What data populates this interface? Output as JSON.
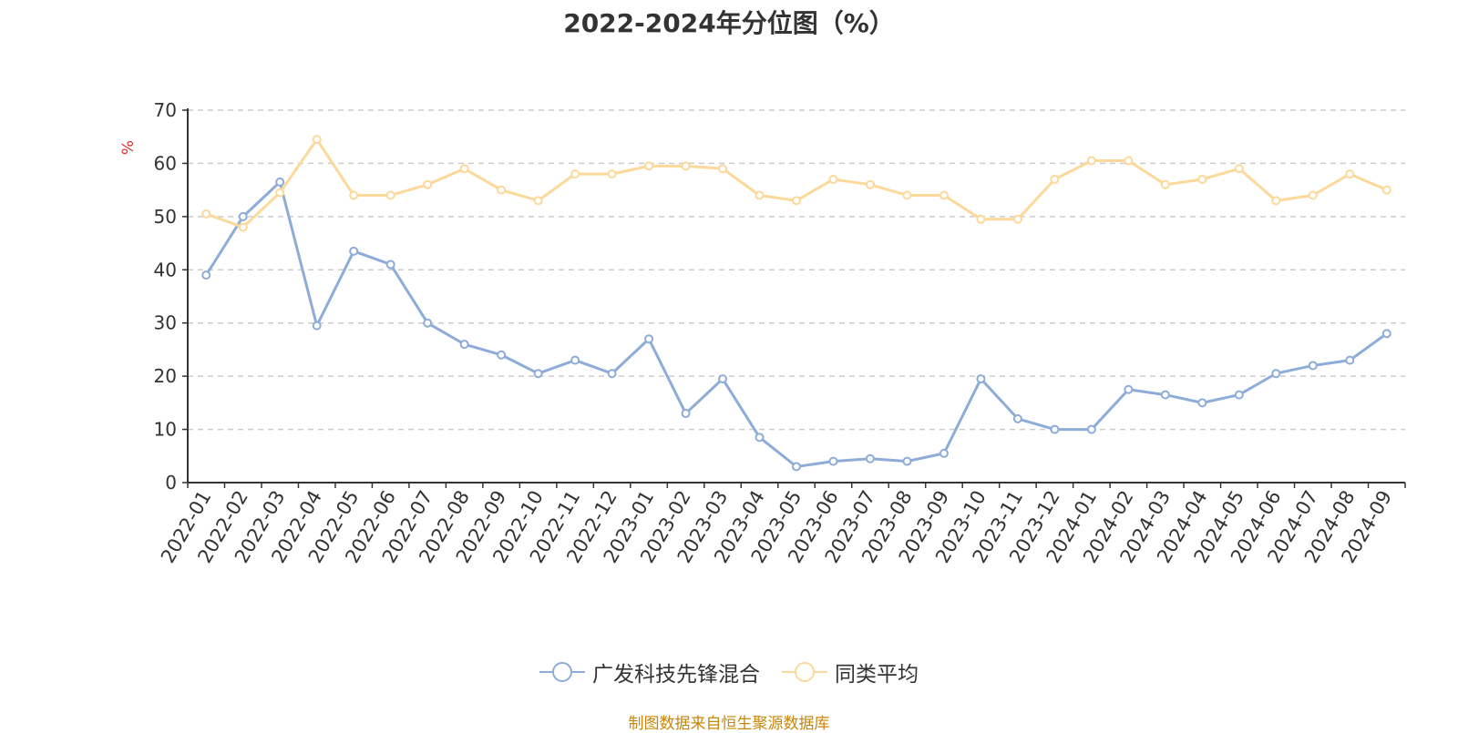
{
  "chart_data": {
    "type": "line",
    "title": "2022-2024年分位图（%）",
    "ylabel": "%",
    "xlabel": "",
    "ylim": [
      0,
      70
    ],
    "yticks": [
      0,
      10,
      20,
      30,
      40,
      50,
      60,
      70
    ],
    "grid": true,
    "legend_position": "bottom",
    "categories": [
      "2022-01",
      "2022-02",
      "2022-03",
      "2022-04",
      "2022-05",
      "2022-06",
      "2022-07",
      "2022-08",
      "2022-09",
      "2022-10",
      "2022-11",
      "2022-12",
      "2023-01",
      "2023-02",
      "2023-03",
      "2023-04",
      "2023-05",
      "2023-06",
      "2023-07",
      "2023-08",
      "2023-09",
      "2023-10",
      "2023-11",
      "2023-12",
      "2024-01",
      "2024-02",
      "2024-03",
      "2024-04",
      "2024-05",
      "2024-06",
      "2024-07",
      "2024-08",
      "2024-09"
    ],
    "series": [
      {
        "name": "广发科技先锋混合",
        "color": "#8eacd8",
        "values": [
          39,
          50,
          56.5,
          29.5,
          43.5,
          41,
          30,
          26,
          24,
          20.5,
          23,
          20.5,
          27,
          13,
          19.5,
          8.5,
          3,
          4,
          4.5,
          4,
          5.5,
          19.5,
          12,
          10,
          10,
          17.5,
          16.5,
          15,
          16.5,
          20.5,
          22,
          23,
          28
        ]
      },
      {
        "name": "同类平均",
        "color": "#fcd99a",
        "values": [
          50.5,
          48,
          54.5,
          64.5,
          54,
          54,
          56,
          59,
          55,
          53,
          58,
          58,
          59.5,
          59.5,
          59,
          54,
          53,
          57,
          56,
          54,
          54,
          49.5,
          49.5,
          57,
          60.5,
          60.5,
          56,
          57,
          59,
          53,
          54,
          58,
          55
        ]
      }
    ]
  },
  "source": {
    "text": "制图数据来自恒生聚源数据库",
    "color": "#c8860a"
  },
  "colors": {
    "axis": "#333333",
    "grid": "#cccccc",
    "unit": "#e03030"
  }
}
